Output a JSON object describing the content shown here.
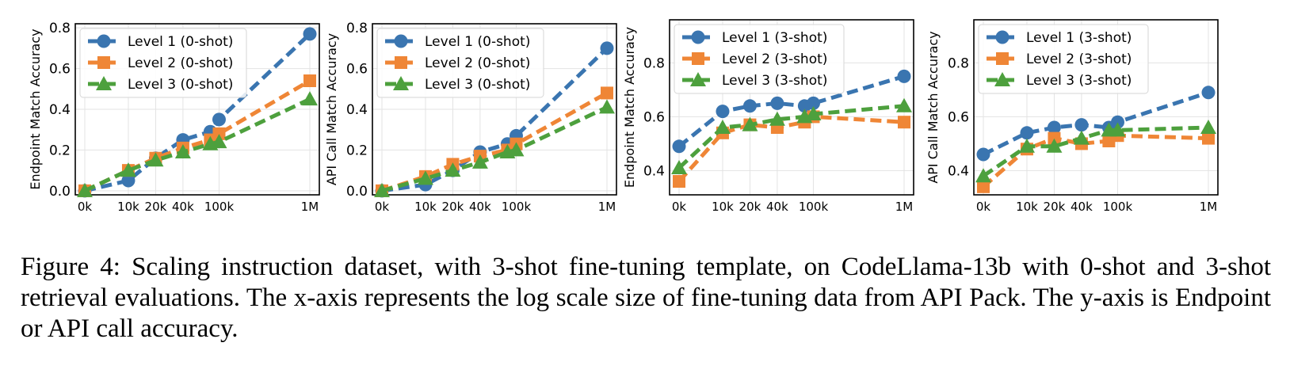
{
  "figure": {
    "caption": "Figure 4: Scaling instruction dataset, with 3-shot fine-tuning template, on CodeLlama-13b with 0-shot and 3-shot retrieval evaluations. The x-axis represents the log scale size of fine-tuning data from API Pack. The y-axis is Endpoint or API call accuracy."
  },
  "colors": {
    "level1": "#3a75b0",
    "level2": "#ef8636",
    "level3": "#4da03d"
  },
  "chart_data": [
    {
      "type": "line",
      "ylabel": "Endpoint Match Accuracy",
      "x_scale": "log",
      "x_tick_labels": [
        "0k",
        "10k",
        "20k",
        "40k",
        "100k",
        "1M"
      ],
      "x": [
        "0k",
        "10k",
        "20k",
        "40k",
        "80k",
        "100k",
        "1M"
      ],
      "ylim": [
        -0.02,
        0.82
      ],
      "yticks": [
        0.0,
        0.2,
        0.4,
        0.6,
        0.8
      ],
      "ytick_labels": [
        "0.0",
        "0.2",
        "0.4",
        "0.6",
        "0.8"
      ],
      "legend": "top-left",
      "grid": true,
      "series": [
        {
          "name": "Level 1 (0-shot)",
          "marker": "circle",
          "values": [
            0.0,
            0.05,
            0.16,
            0.25,
            0.29,
            0.35,
            0.77
          ]
        },
        {
          "name": "Level 2 (0-shot)",
          "marker": "square",
          "values": [
            0.0,
            0.1,
            0.16,
            0.21,
            0.25,
            0.28,
            0.54
          ]
        },
        {
          "name": "Level 3 (0-shot)",
          "marker": "triangle",
          "values": [
            0.0,
            0.1,
            0.15,
            0.19,
            0.23,
            0.24,
            0.45
          ]
        }
      ]
    },
    {
      "type": "line",
      "ylabel": "API Call Match Accuracy",
      "x_scale": "log",
      "x_tick_labels": [
        "0k",
        "10k",
        "20k",
        "40k",
        "100k",
        "1M"
      ],
      "x": [
        "0k",
        "10k",
        "20k",
        "40k",
        "80k",
        "100k",
        "1M"
      ],
      "ylim": [
        -0.02,
        0.82
      ],
      "yticks": [
        0.0,
        0.2,
        0.4,
        0.6,
        0.8
      ],
      "ytick_labels": [
        "0.0",
        "0.2",
        "0.4",
        "0.6",
        "0.8"
      ],
      "legend": "top-left",
      "grid": true,
      "series": [
        {
          "name": "Level 1 (0-shot)",
          "marker": "circle",
          "values": [
            0.0,
            0.03,
            0.1,
            0.19,
            0.23,
            0.27,
            0.7
          ]
        },
        {
          "name": "Level 2 (0-shot)",
          "marker": "square",
          "values": [
            0.0,
            0.07,
            0.13,
            0.17,
            0.2,
            0.23,
            0.48
          ]
        },
        {
          "name": "Level 3 (0-shot)",
          "marker": "triangle",
          "values": [
            0.0,
            0.06,
            0.1,
            0.14,
            0.19,
            0.2,
            0.41
          ]
        }
      ]
    },
    {
      "type": "line",
      "ylabel": "Endpoint Match Accuracy",
      "x_scale": "log",
      "x_tick_labels": [
        "0k",
        "10k",
        "20k",
        "40k",
        "100k",
        "1M"
      ],
      "x": [
        "0k",
        "10k",
        "20k",
        "40k",
        "80k",
        "100k",
        "1M"
      ],
      "ylim": [
        0.31,
        0.96
      ],
      "yticks": [
        0.4,
        0.6,
        0.8
      ],
      "ytick_labels": [
        "0.4",
        "0.6",
        "0.8"
      ],
      "legend": "top-left",
      "grid": true,
      "series": [
        {
          "name": "Level 1 (3-shot)",
          "marker": "circle",
          "values": [
            0.49,
            0.62,
            0.64,
            0.65,
            0.64,
            0.65,
            0.75
          ]
        },
        {
          "name": "Level 2 (3-shot)",
          "marker": "square",
          "values": [
            0.36,
            0.54,
            0.57,
            0.56,
            0.58,
            0.6,
            0.58
          ]
        },
        {
          "name": "Level 3 (3-shot)",
          "marker": "triangle",
          "values": [
            0.41,
            0.56,
            0.57,
            0.59,
            0.6,
            0.61,
            0.64
          ]
        }
      ]
    },
    {
      "type": "line",
      "ylabel": "API Call Match Accuracy",
      "x_scale": "log",
      "x_tick_labels": [
        "0k",
        "10k",
        "20k",
        "40k",
        "100k",
        "1M"
      ],
      "x": [
        "0k",
        "10k",
        "20k",
        "40k",
        "80k",
        "100k",
        "1M"
      ],
      "ylim": [
        0.31,
        0.96
      ],
      "yticks": [
        0.4,
        0.6,
        0.8
      ],
      "ytick_labels": [
        "0.4",
        "0.6",
        "0.8"
      ],
      "legend": "top-left",
      "grid": true,
      "series": [
        {
          "name": "Level 1 (3-shot)",
          "marker": "circle",
          "values": [
            0.46,
            0.54,
            0.56,
            0.57,
            0.56,
            0.58,
            0.69
          ]
        },
        {
          "name": "Level 2 (3-shot)",
          "marker": "square",
          "values": [
            0.34,
            0.48,
            0.52,
            0.5,
            0.51,
            0.53,
            0.52
          ]
        },
        {
          "name": "Level 3 (3-shot)",
          "marker": "triangle",
          "values": [
            0.38,
            0.49,
            0.49,
            0.52,
            0.55,
            0.55,
            0.56
          ]
        }
      ]
    }
  ]
}
